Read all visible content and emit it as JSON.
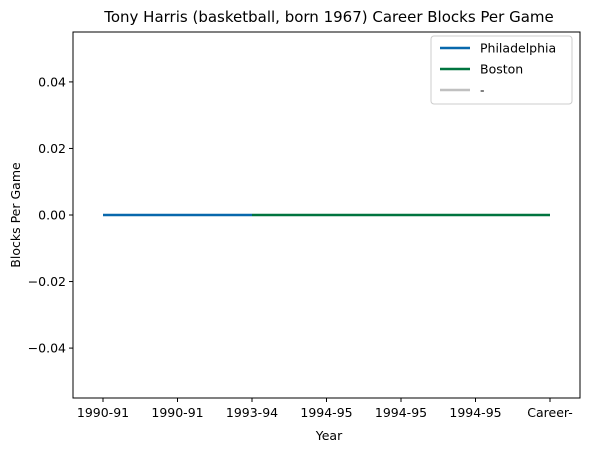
{
  "chart_data": {
    "type": "line",
    "title": "Tony Harris (basketball, born 1967) Career Blocks Per Game",
    "xlabel": "Year",
    "ylabel": "Blocks Per Game",
    "categories": [
      "1990-91",
      "1990-91",
      "1993-94",
      "1994-95",
      "1994-95",
      "1994-95",
      "Career-"
    ],
    "ylim": [
      -0.055,
      0.055
    ],
    "yticks": [
      -0.04,
      -0.02,
      0.0,
      0.02,
      0.04
    ],
    "ytick_labels": [
      "−0.04",
      "−0.02",
      "0.00",
      "0.02",
      "0.04"
    ],
    "grid": false,
    "legend_position": "top-right",
    "series": [
      {
        "name": "Philadelphia",
        "color": "#0868ac",
        "points": [
          {
            "x": 0,
            "y": 0.0
          },
          {
            "x": 1,
            "y": 0.0
          },
          {
            "x": 2,
            "y": 0.0
          }
        ]
      },
      {
        "name": "Boston",
        "color": "#00743f",
        "points": [
          {
            "x": 2,
            "y": 0.0
          },
          {
            "x": 3,
            "y": 0.0
          },
          {
            "x": 4,
            "y": 0.0
          },
          {
            "x": 5,
            "y": 0.0
          },
          {
            "x": 6,
            "y": 0.0
          }
        ]
      },
      {
        "name": "-",
        "color": "#c0c0c0",
        "points": []
      }
    ]
  }
}
